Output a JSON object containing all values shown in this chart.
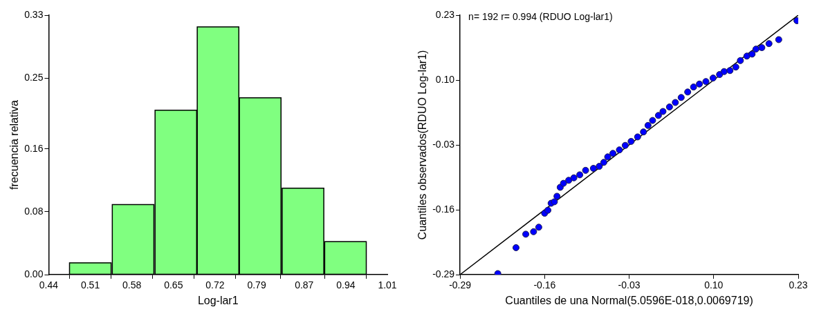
{
  "chart_data": [
    {
      "type": "histogram",
      "xlabel": "Log-lar1",
      "ylabel": "frecuencia relativa",
      "bins": [
        0.474,
        0.546,
        0.618,
        0.69,
        0.76,
        0.832,
        0.904,
        0.975
      ],
      "values": [
        0.015,
        0.089,
        0.209,
        0.315,
        0.225,
        0.11,
        0.042
      ],
      "color": "#80ff80",
      "xlim": [
        0.44,
        1.01
      ],
      "xticks": [
        0.44,
        0.51,
        0.58,
        0.65,
        0.72,
        0.79,
        0.87,
        0.94,
        1.01
      ],
      "ylim": [
        0,
        0.33
      ],
      "yticks": [
        {
          "value": 0,
          "label": "0.00"
        },
        0.08,
        0.16,
        0.25,
        0.33
      ],
      "grid": false,
      "legend": false
    },
    {
      "type": "scatter",
      "xlabel": "Cuantiles de una Normal(5.0596E-018,0.0069719)",
      "ylabel": "Cuantiles observados(RDUO Log-lar1)",
      "annotations": [
        "n= 192 r= 0.994 (RDUO Log-lar1)"
      ],
      "series": [
        {
          "type": "scatter",
          "color": "#0000ff",
          "marker": "circle",
          "x": [
            -0.232,
            -0.204,
            -0.189,
            -0.177,
            -0.169,
            -0.16,
            -0.155,
            -0.15,
            -0.145,
            -0.141,
            -0.136,
            -0.131,
            -0.123,
            -0.115,
            -0.106,
            -0.097,
            -0.085,
            -0.076,
            -0.069,
            -0.063,
            -0.055,
            -0.045,
            -0.036,
            -0.027,
            -0.017,
            -0.008,
            -0.001,
            0.006,
            0.015,
            0.022,
            0.032,
            0.041,
            0.05,
            0.06,
            0.069,
            0.078,
            0.088,
            0.099,
            0.109,
            0.116,
            0.125,
            0.134,
            0.141,
            0.151,
            0.159,
            0.165,
            0.174,
            0.185,
            0.2,
            0.228
          ],
          "values": [
            -0.288,
            -0.236,
            -0.209,
            -0.204,
            -0.195,
            -0.167,
            -0.161,
            -0.147,
            -0.144,
            -0.133,
            -0.115,
            -0.107,
            -0.101,
            -0.096,
            -0.09,
            -0.081,
            -0.077,
            -0.073,
            -0.065,
            -0.054,
            -0.047,
            -0.04,
            -0.031,
            -0.023,
            -0.014,
            -0.004,
            0.009,
            0.019,
            0.029,
            0.037,
            0.046,
            0.055,
            0.065,
            0.076,
            0.086,
            0.092,
            0.097,
            0.104,
            0.111,
            0.117,
            0.119,
            0.126,
            0.139,
            0.148,
            0.152,
            0.162,
            0.165,
            0.173,
            0.181,
            0.219
          ]
        },
        {
          "type": "line",
          "color": "#000000",
          "marker": "none",
          "x": [
            -0.29,
            0.23
          ],
          "values": [
            -0.29,
            0.23
          ]
        }
      ],
      "xlim": [
        -0.29,
        0.23
      ],
      "xticks": [
        {
          "value": -0.29,
          "label": "-0.29"
        },
        {
          "value": -0.16,
          "label": "-0.16"
        },
        {
          "value": -0.03,
          "label": "-0.03"
        },
        {
          "value": 0.1,
          "label": "0.10"
        },
        0.23
      ],
      "ylim": [
        -0.29,
        0.23
      ],
      "yticks": [
        {
          "value": -0.29,
          "label": "-0.29"
        },
        {
          "value": -0.16,
          "label": "-0.16"
        },
        {
          "value": -0.03,
          "label": "-0.03"
        },
        {
          "value": 0.1,
          "label": "0.10"
        },
        0.23
      ],
      "grid": false,
      "legend": false
    }
  ]
}
